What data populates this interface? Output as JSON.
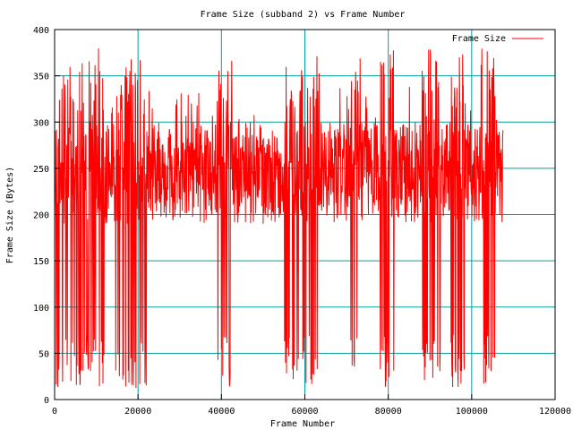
{
  "chart_data": {
    "type": "line",
    "title": "Frame Size (subband 2) vs Frame Number",
    "xlabel": "Frame Number",
    "ylabel": "Frame Size (Bytes)",
    "xlim": [
      0,
      120000
    ],
    "ylim": [
      0,
      400
    ],
    "xticks": [
      0,
      20000,
      40000,
      60000,
      80000,
      100000,
      120000
    ],
    "yticks": [
      0,
      50,
      100,
      150,
      200,
      250,
      300,
      350,
      400
    ],
    "grid": true,
    "legend_position": "top-right",
    "series": [
      {
        "name": "Frame Size",
        "color": "#ff0000",
        "x_range": [
          0,
          107500
        ],
        "typical_range": [
          190,
          300
        ],
        "peak": 380,
        "dip_minimum": 12,
        "dip_regions": [
          [
            0,
            12000
          ],
          [
            14500,
            22000
          ],
          [
            39000,
            42500
          ],
          [
            55000,
            63500
          ],
          [
            71000,
            73500
          ],
          [
            78000,
            81500
          ],
          [
            88000,
            92500
          ],
          [
            95000,
            98500
          ],
          [
            102000,
            106000
          ]
        ]
      }
    ]
  },
  "colors": {
    "grid": "#00a0a0",
    "series": "#ff0000",
    "frame": "#000000"
  }
}
